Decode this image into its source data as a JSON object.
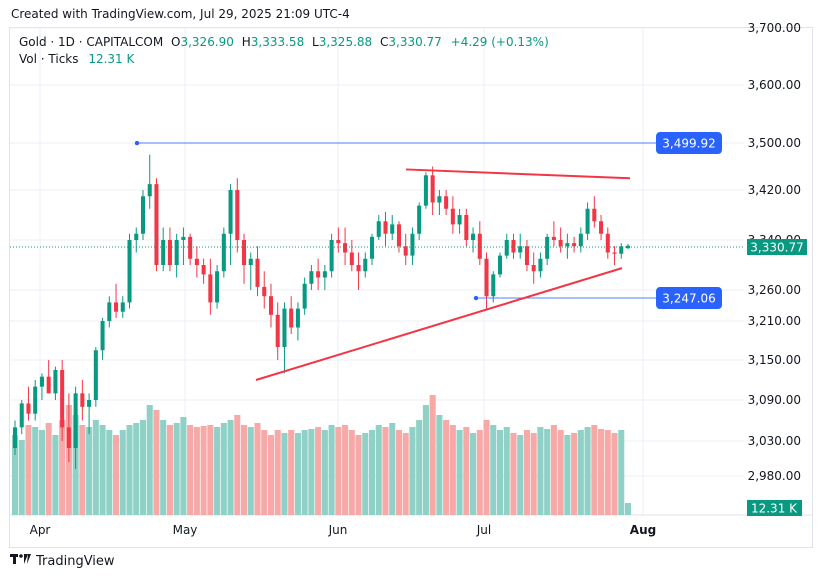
{
  "caption": "Created with TradingView.com, Jul 29, 2025 21:09 UTC-4",
  "legend": {
    "symbol": "Gold · 1D · CAPITALCOM",
    "open_key": "O",
    "open": "3,326.90",
    "high_key": "H",
    "high": "3,333.58",
    "low_key": "L",
    "low": "3,325.88",
    "close_key": "C",
    "close": "3,330.77",
    "change": "+4.29 (+0.13%)",
    "vol_label": "Vol · Ticks",
    "vol_value": "12.31 K"
  },
  "footer": {
    "brand": "TradingView",
    "logo_icon": "tradingview-logo-icon"
  },
  "colors": {
    "up": "#089981",
    "down": "#f23645",
    "up_vol": "#8fd1c6",
    "down_vol": "#f7a9a7",
    "hline": "#2962ff",
    "trend": "#f23645",
    "grid": "#eceff4"
  },
  "chart_data": {
    "type": "candlestick",
    "price_axis_ticks": [
      "3,700.00",
      "3,600.00",
      "3,500.00",
      "3,420.00",
      "3,340.00",
      "3,260.00",
      "3,210.00",
      "3,150.00",
      "3,090.00",
      "3,030.00",
      "2,980.00"
    ],
    "time_axis_labels": [
      "Apr",
      "May",
      "Jun",
      "Jul",
      "Aug"
    ],
    "last_price_label": "3,330.77",
    "volume_label": "12.31 K",
    "horizontal_levels": [
      {
        "label": "3,499.92",
        "value": 3499.92
      },
      {
        "label": "3,247.06",
        "value": 3247.06
      }
    ],
    "trendlines": [
      {
        "from": [
          3,
          3455
        ],
        "to": [
          14,
          3440
        ]
      },
      {
        "from": [
          12,
          3120
        ],
        "to": [
          20,
          3295
        ]
      }
    ],
    "candles": [
      [
        3020,
        3060,
        3010,
        3050,
        80
      ],
      [
        3050,
        3090,
        3040,
        3085,
        75
      ],
      [
        3085,
        3110,
        3060,
        3070,
        90
      ],
      [
        3070,
        3120,
        3060,
        3110,
        88
      ],
      [
        3110,
        3130,
        3090,
        3125,
        85
      ],
      [
        3125,
        3150,
        3100,
        3100,
        92
      ],
      [
        3100,
        3140,
        3090,
        3135,
        80
      ],
      [
        3135,
        3150,
        3030,
        3050,
        95
      ],
      [
        3050,
        3100,
        3000,
        3020,
        110
      ],
      [
        3020,
        3110,
        2990,
        3100,
        100
      ],
      [
        3100,
        3120,
        3060,
        3080,
        90
      ],
      [
        3080,
        3100,
        3040,
        3090,
        88
      ],
      [
        3090,
        3170,
        3080,
        3165,
        95
      ],
      [
        3165,
        3215,
        3150,
        3210,
        90
      ],
      [
        3210,
        3250,
        3200,
        3240,
        85
      ],
      [
        3240,
        3270,
        3215,
        3225,
        80
      ],
      [
        3225,
        3250,
        3215,
        3240,
        85
      ],
      [
        3240,
        3350,
        3230,
        3340,
        90
      ],
      [
        3340,
        3360,
        3320,
        3350,
        92
      ],
      [
        3350,
        3420,
        3340,
        3410,
        95
      ],
      [
        3410,
        3480,
        3390,
        3430,
        110
      ],
      [
        3430,
        3440,
        3290,
        3300,
        105
      ],
      [
        3300,
        3360,
        3290,
        3340,
        95
      ],
      [
        3340,
        3360,
        3290,
        3300,
        90
      ],
      [
        3300,
        3350,
        3280,
        3340,
        92
      ],
      [
        3340,
        3360,
        3300,
        3345,
        98
      ],
      [
        3345,
        3350,
        3300,
        3310,
        90
      ],
      [
        3310,
        3330,
        3280,
        3300,
        88
      ],
      [
        3300,
        3310,
        3270,
        3285,
        89
      ],
      [
        3285,
        3310,
        3220,
        3240,
        90
      ],
      [
        3240,
        3300,
        3230,
        3290,
        88
      ],
      [
        3290,
        3360,
        3280,
        3350,
        92
      ],
      [
        3350,
        3430,
        3300,
        3420,
        95
      ],
      [
        3420,
        3440,
        3320,
        3340,
        100
      ],
      [
        3340,
        3350,
        3270,
        3300,
        90
      ],
      [
        3300,
        3320,
        3260,
        3310,
        88
      ],
      [
        3310,
        3330,
        3250,
        3265,
        92
      ],
      [
        3265,
        3290,
        3230,
        3250,
        85
      ],
      [
        3250,
        3270,
        3200,
        3220,
        80
      ],
      [
        3220,
        3240,
        3150,
        3170,
        85
      ],
      [
        3170,
        3240,
        3130,
        3230,
        82
      ],
      [
        3230,
        3250,
        3190,
        3200,
        85
      ],
      [
        3200,
        3240,
        3180,
        3230,
        82
      ],
      [
        3230,
        3280,
        3220,
        3270,
        85
      ],
      [
        3270,
        3300,
        3260,
        3290,
        86
      ],
      [
        3290,
        3310,
        3260,
        3280,
        88
      ],
      [
        3280,
        3300,
        3260,
        3290,
        85
      ],
      [
        3290,
        3350,
        3280,
        3340,
        90
      ],
      [
        3340,
        3360,
        3320,
        3335,
        88
      ],
      [
        3335,
        3360,
        3300,
        3320,
        90
      ],
      [
        3320,
        3340,
        3290,
        3300,
        85
      ],
      [
        3300,
        3320,
        3260,
        3290,
        80
      ],
      [
        3290,
        3320,
        3280,
        3310,
        82
      ],
      [
        3310,
        3350,
        3300,
        3345,
        85
      ],
      [
        3345,
        3380,
        3340,
        3370,
        90
      ],
      [
        3370,
        3385,
        3330,
        3350,
        88
      ],
      [
        3350,
        3380,
        3340,
        3365,
        92
      ],
      [
        3365,
        3370,
        3320,
        3330,
        85
      ],
      [
        3330,
        3350,
        3300,
        3315,
        82
      ],
      [
        3315,
        3360,
        3300,
        3350,
        88
      ],
      [
        3350,
        3400,
        3340,
        3395,
        95
      ],
      [
        3395,
        3450,
        3390,
        3445,
        110
      ],
      [
        3445,
        3460,
        3380,
        3400,
        120
      ],
      [
        3400,
        3420,
        3380,
        3410,
        100
      ],
      [
        3410,
        3420,
        3380,
        3390,
        95
      ],
      [
        3390,
        3410,
        3350,
        3365,
        90
      ],
      [
        3365,
        3390,
        3350,
        3380,
        85
      ],
      [
        3380,
        3390,
        3330,
        3340,
        88
      ],
      [
        3340,
        3360,
        3320,
        3350,
        82
      ],
      [
        3350,
        3370,
        3300,
        3310,
        85
      ],
      [
        3310,
        3320,
        3230,
        3250,
        95
      ],
      [
        3250,
        3290,
        3240,
        3285,
        90
      ],
      [
        3285,
        3320,
        3280,
        3315,
        85
      ],
      [
        3315,
        3350,
        3310,
        3340,
        88
      ],
      [
        3340,
        3350,
        3310,
        3320,
        82
      ],
      [
        3320,
        3350,
        3310,
        3330,
        80
      ],
      [
        3330,
        3340,
        3290,
        3300,
        85
      ],
      [
        3300,
        3320,
        3270,
        3290,
        82
      ],
      [
        3290,
        3320,
        3280,
        3310,
        88
      ],
      [
        3310,
        3350,
        3300,
        3345,
        86
      ],
      [
        3345,
        3370,
        3330,
        3340,
        90
      ],
      [
        3340,
        3360,
        3320,
        3330,
        85
      ],
      [
        3330,
        3350,
        3310,
        3335,
        80
      ],
      [
        3335,
        3345,
        3320,
        3330,
        82
      ],
      [
        3330,
        3360,
        3320,
        3350,
        85
      ],
      [
        3350,
        3400,
        3340,
        3390,
        88
      ],
      [
        3390,
        3410,
        3360,
        3370,
        90
      ],
      [
        3370,
        3380,
        3340,
        3350,
        86
      ],
      [
        3350,
        3360,
        3310,
        3320,
        85
      ],
      [
        3320,
        3330,
        3300,
        3318,
        82
      ],
      [
        3318,
        3335,
        3310,
        3330,
        85
      ],
      [
        3326.9,
        3333.58,
        3325.88,
        3330.77,
        12
      ]
    ]
  }
}
